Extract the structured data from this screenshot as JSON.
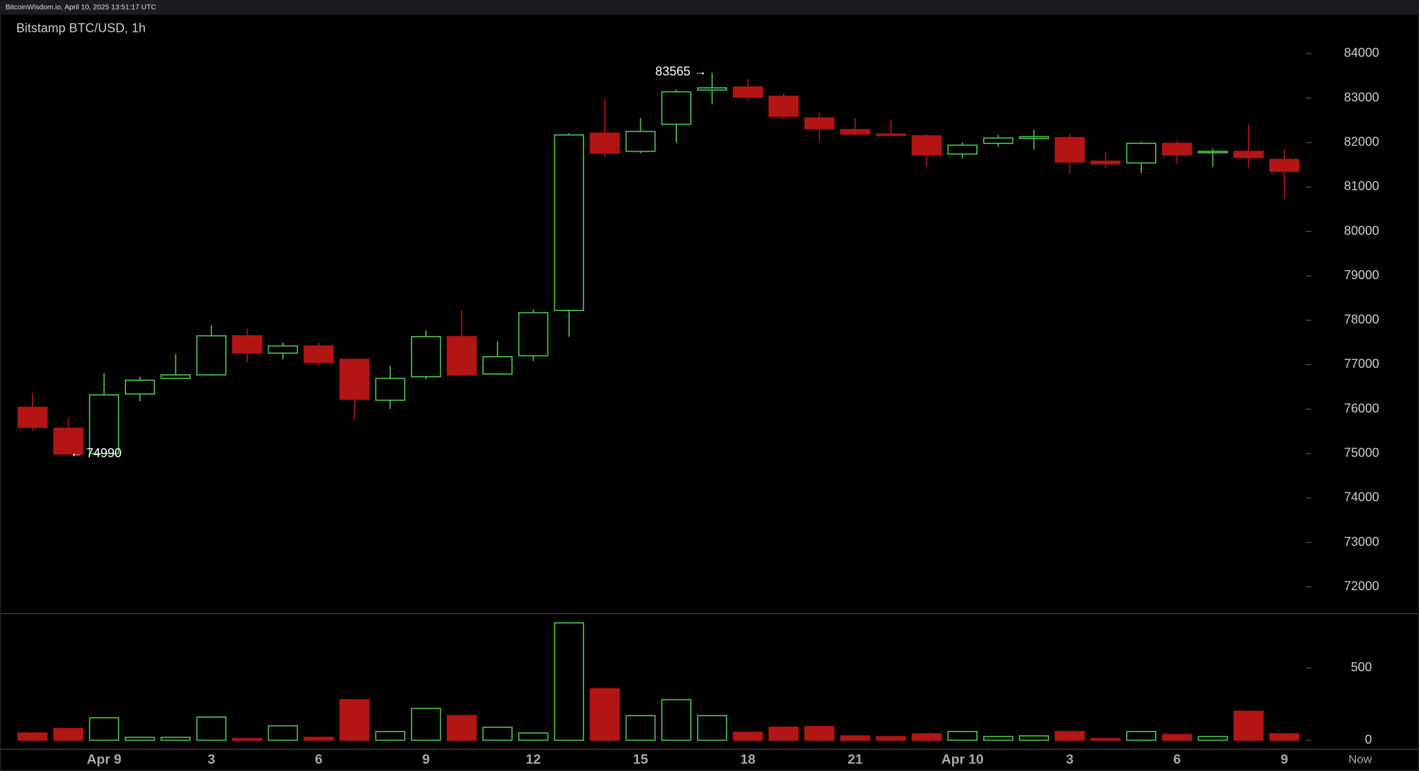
{
  "header": "BitcoinWisdom.io, April 10, 2025 13:51:17 UTC",
  "chart_data": {
    "type": "candlestick",
    "title": "Bitstamp BTC/USD, 1h",
    "categories": [
      null,
      null,
      "Apr 9",
      null,
      null,
      "3",
      null,
      null,
      "6",
      null,
      null,
      "9",
      null,
      null,
      "12",
      null,
      null,
      "15",
      null,
      null,
      "18",
      null,
      null,
      "21",
      null,
      null,
      "Apr 10",
      null,
      null,
      "3",
      null,
      null,
      "6",
      null,
      null,
      "9"
    ],
    "now_label": "Now",
    "open": [
      76040,
      75570,
      75000,
      76340,
      76690,
      76770,
      77650,
      77260,
      77420,
      77120,
      76200,
      76730,
      77630,
      76790,
      77200,
      78220,
      82210,
      81800,
      82410,
      83180,
      83250,
      83040,
      82550,
      82290,
      82190,
      82150,
      81740,
      81980,
      82090,
      82110,
      81580,
      81540,
      81980,
      81780,
      81800,
      81620
    ],
    "high": [
      76360,
      75790,
      76810,
      76730,
      77240,
      77890,
      77810,
      77500,
      77500,
      77140,
      76970,
      77770,
      78220,
      77520,
      78240,
      82210,
      82980,
      82550,
      83190,
      83565,
      83430,
      83100,
      82680,
      82550,
      82510,
      82190,
      82000,
      82170,
      82290,
      82190,
      81780,
      82020,
      82040,
      81860,
      82410,
      81840
    ],
    "low": [
      75510,
      74990,
      75000,
      76180,
      76670,
      76750,
      77050,
      77120,
      76970,
      75750,
      76000,
      76670,
      76730,
      76770,
      77080,
      77630,
      81680,
      81760,
      82000,
      82860,
      82940,
      82530,
      82000,
      82150,
      82150,
      81450,
      81640,
      81900,
      81840,
      81290,
      81430,
      81310,
      81520,
      81450,
      81430,
      80720
    ],
    "close": [
      75590,
      74990,
      76320,
      76650,
      76770,
      77650,
      77260,
      77420,
      77050,
      76220,
      76690,
      77630,
      76770,
      77180,
      78170,
      82170,
      81760,
      82250,
      83140,
      83230,
      83020,
      82590,
      82310,
      82190,
      82170,
      81720,
      81940,
      82100,
      82130,
      81560,
      81520,
      81980,
      81720,
      81800,
      81660,
      81350
    ],
    "volume": [
      50,
      80,
      155,
      20,
      20,
      160,
      12,
      100,
      20,
      280,
      60,
      220,
      170,
      90,
      50,
      810,
      355,
      170,
      280,
      170,
      55,
      90,
      95,
      30,
      25,
      45,
      60,
      25,
      30,
      60,
      12,
      60,
      40,
      25,
      200,
      45
    ],
    "up_color": "#4cc24c",
    "down_color": "#b31414",
    "ylim": [
      71400,
      84900
    ],
    "yticks": [
      72000,
      73000,
      74000,
      75000,
      76000,
      77000,
      78000,
      79000,
      80000,
      81000,
      82000,
      83000,
      84000
    ],
    "volume_lim": [
      -62,
      875
    ],
    "volume_ticks": [
      0,
      500
    ],
    "annotations": [
      {
        "label": "83565 →"
      },
      {
        "label": "← 74990"
      }
    ]
  }
}
